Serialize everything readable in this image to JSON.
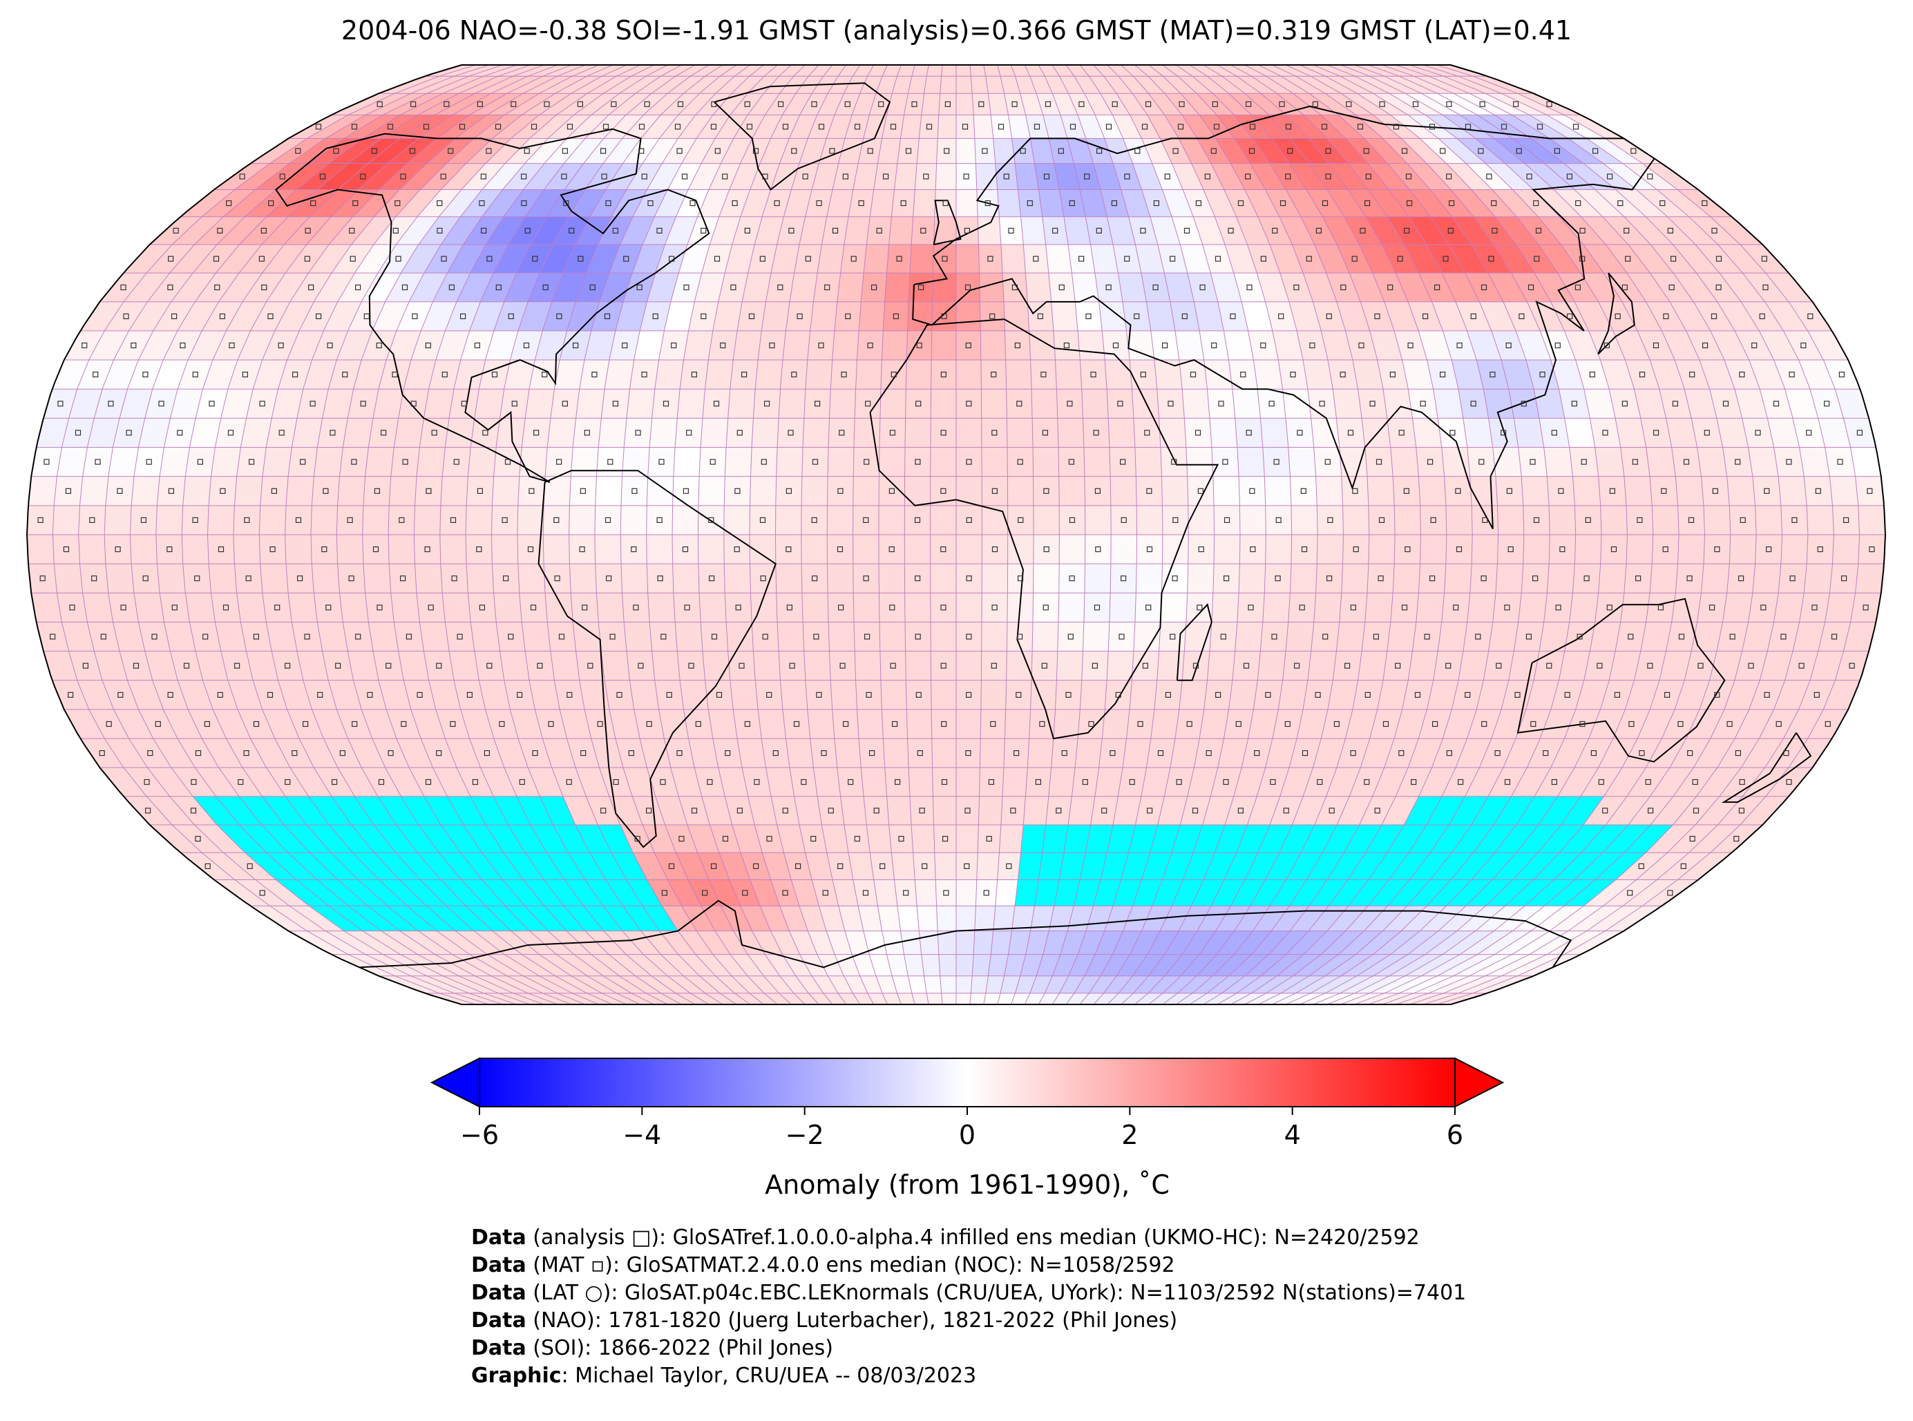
{
  "title": "2004-06 NAO=-0.38 SOI=-1.91 GMST (analysis)=0.366 GMST (MAT)=0.319 GMST (LAT)=0.41",
  "colorbar": {
    "ticks": [
      "−6",
      "−4",
      "−2",
      "0",
      "2",
      "4",
      "6"
    ],
    "tick_values": [
      -6,
      -4,
      -2,
      0,
      2,
      4,
      6
    ],
    "label": "Anomaly (from 1961-1990), ˚C",
    "range": [
      -6,
      6
    ],
    "colormap": [
      "#0000ff",
      "#ffffff",
      "#ff0000"
    ],
    "missing_color": "#00ffff"
  },
  "credits": [
    {
      "bold": "Data",
      "text": " (analysis □): GloSATref.1.0.0.0-alpha.4 infilled ens median (UKMO-HC): N=2420/2592"
    },
    {
      "bold": "Data",
      "text": " (MAT ▫): GloSATMAT.2.4.0.0 ens median (NOC): N=1058/2592"
    },
    {
      "bold": "Data",
      "text": " (LAT ○): GloSAT.p04c.EBC.LEKnormals (CRU/UEA, UYork): N=1103/2592 N(stations)=7401"
    },
    {
      "bold": "Data",
      "text": " (NAO): 1781-1820 (Juerg Luterbacher), 1821-2022 (Phil Jones)"
    },
    {
      "bold": "Data",
      "text": " (SOI): 1866-2022 (Phil Jones)"
    },
    {
      "bold": "Graphic",
      "text": ": Michael Taylor, CRU/UEA -- 08/03/2023"
    }
  ],
  "map": {
    "projection": "Robinson",
    "grid_resolution_deg": 5,
    "grid_color": "#c080c0",
    "regional_anomalies": [
      {
        "region": "Alaska",
        "anomaly": 4.0
      },
      {
        "region": "Canada / north-central USA",
        "anomaly": -2.5
      },
      {
        "region": "Eastern USA",
        "anomaly": -1.5
      },
      {
        "region": "Scandinavia / NW Russia",
        "anomaly": -2.0
      },
      {
        "region": "Western Europe / Iberia",
        "anomaly": 2.5
      },
      {
        "region": "Central Siberia",
        "anomaly": 3.5
      },
      {
        "region": "Eastern Siberia",
        "anomaly": -2.0
      },
      {
        "region": "Mongolia / NE China",
        "anomaly": 3.5
      },
      {
        "region": "Southern China",
        "anomaly": -1.5
      },
      {
        "region": "Tropical oceans",
        "anomaly": 1.0
      },
      {
        "region": "Southern Ocean",
        "anomaly": 1.0
      },
      {
        "region": "Antarctica (East)",
        "anomaly": -2.0
      }
    ]
  }
}
